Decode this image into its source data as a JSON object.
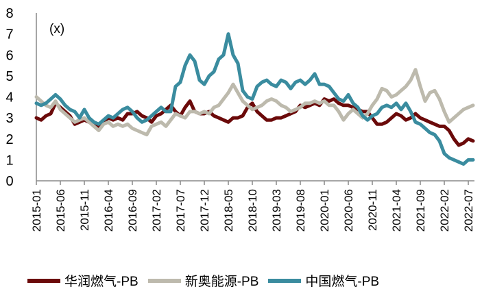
{
  "chart_data": {
    "type": "line",
    "title": "",
    "unit_label": "(x)",
    "xlabel": "",
    "ylabel": "",
    "ylim": [
      0,
      8
    ],
    "yticks": [
      0,
      1,
      2,
      3,
      4,
      5,
      6,
      7,
      8
    ],
    "x_start": "2015-01",
    "x_frequency": "monthly",
    "xtick_labels": [
      "2015-01",
      "2015-06",
      "2015-11",
      "2016-04",
      "2016-09",
      "2017-02",
      "2017-07",
      "2017-12",
      "2018-05",
      "2018-10",
      "2019-03",
      "2019-08",
      "2020-01",
      "2020-06",
      "2020-11",
      "2021-04",
      "2021-09",
      "2022-02",
      "2022-07"
    ],
    "grid": false,
    "legend_position": "bottom",
    "series": [
      {
        "name": "华润燃气-PB",
        "color": "#6B0A0A",
        "values": [
          3.0,
          2.9,
          3.1,
          3.2,
          3.7,
          3.5,
          3.3,
          3.1,
          2.7,
          2.8,
          2.9,
          2.8,
          2.8,
          2.6,
          2.8,
          3.0,
          2.9,
          3.0,
          2.9,
          3.2,
          3.2,
          3.3,
          3.1,
          3.0,
          2.8,
          3.1,
          3.2,
          3.4,
          3.6,
          3.3,
          3.1,
          3.5,
          3.8,
          3.3,
          3.2,
          3.2,
          3.3,
          3.1,
          3.0,
          2.9,
          2.8,
          3.0,
          3.0,
          3.1,
          3.5,
          3.7,
          3.3,
          3.1,
          2.9,
          2.9,
          3.0,
          3.0,
          3.1,
          3.2,
          3.3,
          3.6,
          3.5,
          3.6,
          3.7,
          3.6,
          3.9,
          3.8,
          3.9,
          3.7,
          3.6,
          3.6,
          3.5,
          3.4,
          3.3,
          3.3,
          3.0,
          2.7,
          2.7,
          2.8,
          3.0,
          3.2,
          3.1,
          2.9,
          3.0,
          3.2,
          3.0,
          2.9,
          2.8,
          2.7,
          2.6,
          2.6,
          2.4,
          2.0,
          1.7,
          1.8,
          2.0,
          1.9
        ]
      },
      {
        "name": "新奥能源-PB",
        "color": "#BDBAAD",
        "values": [
          4.0,
          3.8,
          3.6,
          3.5,
          3.8,
          3.4,
          3.2,
          3.0,
          2.8,
          2.9,
          3.0,
          2.8,
          2.6,
          2.4,
          2.7,
          2.8,
          2.6,
          2.7,
          2.6,
          2.7,
          2.5,
          2.4,
          2.3,
          2.2,
          2.6,
          2.7,
          2.8,
          2.6,
          2.9,
          3.2,
          3.1,
          3.0,
          3.3,
          3.3,
          3.2,
          3.3,
          3.2,
          3.5,
          3.6,
          3.9,
          4.2,
          4.6,
          4.2,
          3.8,
          3.6,
          3.4,
          3.5,
          3.6,
          3.8,
          3.9,
          3.8,
          3.6,
          3.5,
          3.3,
          3.4,
          3.5,
          3.7,
          3.7,
          3.8,
          3.7,
          3.8,
          3.6,
          3.6,
          3.3,
          2.9,
          3.2,
          3.4,
          3.2,
          3.0,
          3.2,
          3.6,
          3.9,
          4.4,
          4.3,
          4.0,
          4.1,
          4.3,
          4.5,
          4.8,
          5.3,
          4.5,
          3.8,
          4.2,
          4.3,
          3.9,
          3.3,
          2.8,
          3.0,
          3.2,
          3.4,
          3.5,
          3.6
        ]
      },
      {
        "name": "中国燃气-PB",
        "color": "#3A8C9F",
        "values": [
          3.7,
          3.6,
          3.7,
          3.9,
          4.1,
          3.9,
          3.6,
          3.4,
          3.3,
          3.0,
          3.4,
          3.0,
          2.8,
          2.7,
          2.9,
          3.1,
          3.0,
          3.2,
          3.4,
          3.5,
          3.3,
          3.0,
          2.8,
          2.9,
          3.1,
          3.3,
          3.5,
          3.3,
          3.3,
          4.5,
          4.7,
          5.5,
          6.0,
          5.7,
          4.8,
          4.6,
          5.0,
          5.2,
          5.8,
          6.0,
          7.0,
          6.0,
          5.6,
          4.3,
          4.0,
          3.9,
          4.5,
          4.7,
          4.8,
          4.6,
          4.5,
          4.8,
          4.7,
          4.4,
          4.7,
          4.8,
          4.6,
          4.8,
          5.1,
          4.6,
          4.6,
          4.5,
          4.2,
          3.9,
          3.8,
          4.1,
          3.7,
          3.5,
          3.1,
          2.9,
          3.1,
          3.2,
          3.5,
          3.6,
          3.5,
          3.7,
          3.4,
          3.7,
          3.3,
          2.8,
          2.7,
          2.5,
          2.3,
          2.2,
          1.9,
          1.3,
          1.1,
          1.0,
          0.9,
          0.8,
          1.0,
          1.0
        ]
      }
    ]
  }
}
